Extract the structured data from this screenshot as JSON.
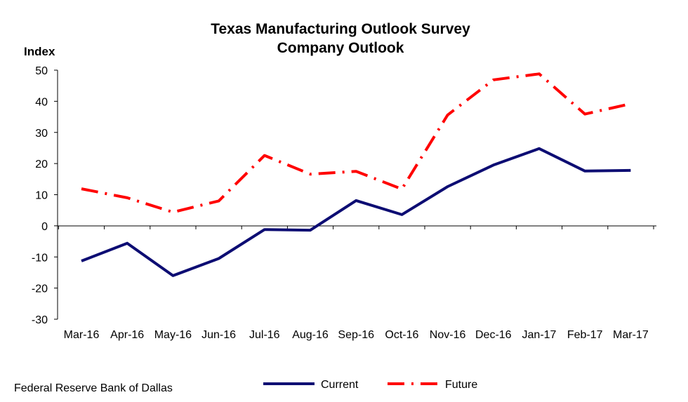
{
  "source": "Federal Reserve Bank of Dallas",
  "colors": {
    "current": "#0d0d73",
    "future": "#ff0000"
  },
  "chart_data": {
    "type": "line",
    "title": "Texas Manufacturing Outlook Survey",
    "subtitle": "Company Outlook",
    "ylabel": "Index",
    "xlabel": "",
    "ylim": [
      -30,
      50
    ],
    "yticks": [
      "50",
      "40",
      "30",
      "20",
      "10",
      "0",
      "-10",
      "-20",
      "-30"
    ],
    "grid": false,
    "legend": "bottom",
    "categories": [
      "Mar-16",
      "Apr-16",
      "May-16",
      "Jun-16",
      "Jul-16",
      "Aug-16",
      "Sep-16",
      "Oct-16",
      "Nov-16",
      "Dec-16",
      "Jan-17",
      "Feb-17",
      "Mar-17"
    ],
    "series": [
      {
        "name": "Current",
        "style": "solid",
        "values": [
          -11.3,
          -5.6,
          -16.0,
          -10.5,
          -1.2,
          -1.4,
          8.1,
          3.6,
          12.6,
          19.5,
          24.8,
          17.6,
          17.8
        ]
      },
      {
        "name": "Future",
        "style": "dash-dot",
        "values": [
          11.9,
          9.0,
          4.4,
          8.0,
          22.6,
          16.6,
          17.5,
          11.8,
          35.6,
          46.9,
          48.8,
          35.9,
          39.2
        ]
      }
    ]
  }
}
